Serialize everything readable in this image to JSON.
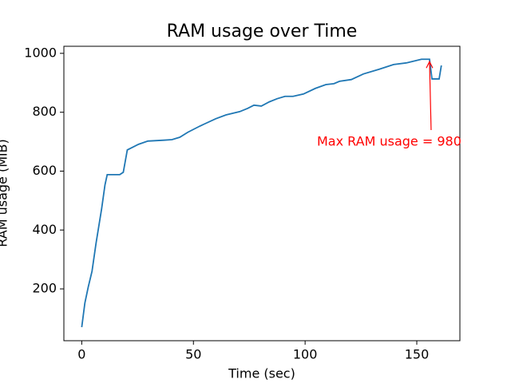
{
  "chart_data": {
    "type": "line",
    "title": "RAM usage over Time",
    "xlabel": "Time (sec)",
    "ylabel": "RAM usage (MiB)",
    "x": [
      0,
      1.4,
      2.9,
      4.6,
      6.4,
      8.9,
      10.4,
      11.4,
      17,
      18.6,
      20.4,
      22.5,
      25.4,
      29.6,
      36.8,
      40.4,
      43.9,
      47.5,
      52.9,
      60,
      64.6,
      70.7,
      74.3,
      77.1,
      80.4,
      83.9,
      87.5,
      91,
      94.6,
      99.3,
      104.6,
      109.3,
      112.9,
      115.4,
      120.7,
      126.1,
      133.2,
      139.6,
      145.7,
      152.1,
      155.7,
      156.8,
      160,
      161
    ],
    "series": [
      {
        "name": "RAM usage",
        "color": "#1f77b4",
        "values": [
          70,
          152,
          206,
          260,
          355,
          472,
          553,
          588,
          588,
          596,
          672,
          680,
          691,
          702,
          705,
          707,
          715,
          732,
          753,
          778,
          791,
          802,
          813,
          824,
          821,
          835,
          846,
          854,
          854,
          862,
          881,
          894,
          897,
          905,
          911,
          930,
          946,
          962,
          968,
          980,
          980,
          913,
          913,
          959
        ]
      }
    ],
    "annotation": {
      "text": "Max RAM usage = 980",
      "x": 155.7,
      "y": 980,
      "color": "#ff0000"
    },
    "xlim": [
      -8,
      169.3
    ],
    "ylim": [
      24,
      1024
    ],
    "xticks": [
      0,
      50,
      100,
      150
    ],
    "yticks": [
      200,
      400,
      600,
      800,
      1000
    ],
    "grid": false
  }
}
